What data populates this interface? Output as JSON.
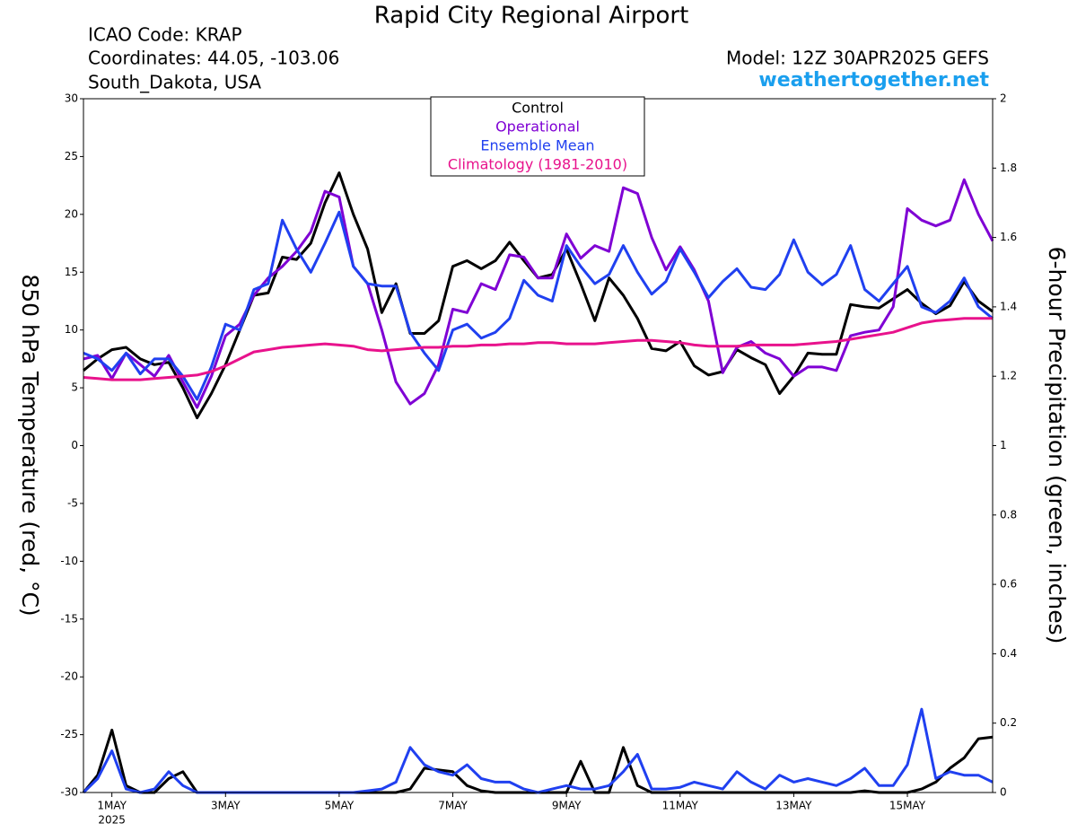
{
  "chart_data": {
    "type": "line",
    "title": "Rapid City Regional Airport",
    "annotations": {
      "icao": "ICAO Code: KRAP",
      "coords": "Coordinates: 44.05, -103.06",
      "place": "South_Dakota, USA",
      "model": "Model: 12Z 30APR2025 GEFS",
      "site": "weathertogether.net",
      "year": "2025"
    },
    "ylabel": "850 hPa Temperature (red, °C)",
    "y2label": "6-hour Precipitation (green, inches)",
    "x": [
      0.5,
      0.75,
      1,
      1.25,
      1.5,
      1.75,
      2,
      2.25,
      2.5,
      2.75,
      3,
      3.25,
      3.5,
      3.75,
      4,
      4.25,
      4.5,
      4.75,
      5,
      5.25,
      5.5,
      5.75,
      6,
      6.25,
      6.5,
      6.75,
      7,
      7.25,
      7.5,
      7.75,
      8,
      8.25,
      8.5,
      8.75,
      9,
      9.25,
      9.5,
      9.75,
      10,
      10.25,
      10.5,
      10.75,
      11,
      11.25,
      11.5,
      11.75,
      12,
      12.25,
      12.5,
      12.75,
      13,
      13.25,
      13.5,
      13.75,
      14,
      14.25,
      14.5,
      14.75,
      15,
      15.25,
      15.5,
      15.75,
      16,
      16.25,
      16.5
    ],
    "xlim": [
      0.5,
      16.5
    ],
    "xticks": [
      {
        "value": 1,
        "label": "1MAY"
      },
      {
        "value": 3,
        "label": "3MAY"
      },
      {
        "value": 5,
        "label": "5MAY"
      },
      {
        "value": 7,
        "label": "7MAY"
      },
      {
        "value": 9,
        "label": "9MAY"
      },
      {
        "value": 11,
        "label": "11MAY"
      },
      {
        "value": 13,
        "label": "13MAY"
      },
      {
        "value": 15,
        "label": "15MAY"
      }
    ],
    "ylim": [
      -30,
      30
    ],
    "yticks": [
      -30,
      -25,
      -20,
      -15,
      -10,
      -5,
      0,
      5,
      10,
      15,
      20,
      25,
      30
    ],
    "y2lim": [
      0,
      2
    ],
    "y2ticks": [
      0,
      0.2,
      0.4,
      0.6,
      0.8,
      1,
      1.2,
      1.4,
      1.6,
      1.8,
      2
    ],
    "series": [
      {
        "name": "Control",
        "color": "#000000",
        "values": [
          6.5,
          7.5,
          8.3,
          8.5,
          7.5,
          7,
          7.2,
          5,
          2.4,
          4.5,
          7,
          10,
          13,
          13.2,
          16.3,
          16.1,
          17.5,
          21,
          23.6,
          20,
          17,
          11.5,
          14,
          9.7,
          9.7,
          10.8,
          15.5,
          16,
          15.3,
          16,
          17.6,
          16,
          14.5,
          14.8,
          17,
          14,
          10.8,
          14.5,
          13,
          11,
          8.4,
          8.2,
          9,
          6.9,
          6.1,
          6.4,
          8.3,
          7.6,
          7,
          4.5,
          6,
          8,
          7.9,
          7.9,
          12.2,
          12,
          11.9,
          12.7,
          13.5,
          12.3,
          11.4,
          12.1,
          14.2,
          12.5,
          11.6
        ]
      },
      {
        "name": "Operational",
        "color": "#7f00d4",
        "values": [
          7.5,
          7.8,
          5.8,
          8,
          7,
          6,
          7.8,
          5.5,
          3.3,
          6,
          9.5,
          10.5,
          13,
          14.5,
          15.5,
          16.8,
          18.5,
          22,
          21.5,
          15.5,
          14,
          10,
          5.5,
          3.6,
          4.5,
          7,
          11.8,
          11.5,
          14,
          13.5,
          16.5,
          16.3,
          14.5,
          14.5,
          18.3,
          16.2,
          17.3,
          16.8,
          22.3,
          21.8,
          18,
          15.2,
          17.2,
          15.2,
          12.5,
          6.3,
          8.5,
          9,
          8,
          7.5,
          6,
          6.8,
          6.8,
          6.5,
          9.5,
          9.8,
          10,
          12,
          20.5,
          19.5,
          19,
          19.5,
          23,
          20,
          17.7
        ]
      },
      {
        "name": "Ensemble Mean",
        "color": "#2040f0",
        "values": [
          8,
          7.5,
          6.5,
          8,
          6.2,
          7.5,
          7.5,
          6,
          4,
          6.8,
          10.5,
          10,
          13.5,
          14,
          19.5,
          17,
          15,
          17.5,
          20.2,
          15.5,
          14,
          13.8,
          13.8,
          9.8,
          8,
          6.5,
          10,
          10.5,
          9.3,
          9.8,
          11,
          14.3,
          13,
          12.5,
          17.3,
          15.5,
          14,
          14.8,
          17.3,
          15,
          13.1,
          14.2,
          17,
          15,
          12.8,
          14.2,
          15.3,
          13.7,
          13.5,
          14.8,
          17.8,
          15,
          13.9,
          14.8,
          17.3,
          13.5,
          12.5,
          14,
          15.5,
          12,
          11.5,
          12.5,
          14.5,
          12,
          11
        ]
      },
      {
        "name": "Climatology (1981-2010)",
        "color": "#e8128c",
        "values": [
          5.9,
          5.8,
          5.7,
          5.7,
          5.7,
          5.8,
          5.9,
          6.0,
          6.1,
          6.4,
          6.9,
          7.5,
          8.1,
          8.3,
          8.5,
          8.6,
          8.7,
          8.8,
          8.7,
          8.6,
          8.3,
          8.2,
          8.3,
          8.4,
          8.5,
          8.5,
          8.6,
          8.6,
          8.7,
          8.7,
          8.8,
          8.8,
          8.9,
          8.9,
          8.8,
          8.8,
          8.8,
          8.9,
          9.0,
          9.1,
          9.1,
          9.0,
          8.9,
          8.7,
          8.6,
          8.6,
          8.6,
          8.7,
          8.7,
          8.7,
          8.7,
          8.8,
          8.9,
          9.0,
          9.2,
          9.4,
          9.6,
          9.8,
          10.2,
          10.6,
          10.8,
          10.9,
          11.0,
          11.0,
          11.0
        ]
      },
      {
        "color": "#000000",
        "axis": "y2",
        "values": [
          0,
          0.05,
          0.18,
          0.02,
          0,
          0,
          0.04,
          0.06,
          0,
          0,
          0,
          0,
          0,
          0,
          0,
          0,
          0,
          0,
          0,
          0,
          0,
          0,
          0,
          0.01,
          0.07,
          0.065,
          0.06,
          0.02,
          0.005,
          0,
          0,
          0,
          0,
          0,
          0,
          0.09,
          0,
          0,
          0.13,
          0.02,
          0,
          0,
          0,
          0,
          0,
          0,
          0,
          0,
          0,
          0,
          0,
          0,
          0,
          0,
          0,
          0.005,
          0,
          0,
          0,
          0.01,
          0.03,
          0.07,
          0.1,
          0.155,
          0.16
        ]
      },
      {
        "color": "#2040f0",
        "axis": "y2",
        "values": [
          0,
          0.04,
          0.12,
          0.01,
          0,
          0.01,
          0.06,
          0.02,
          0,
          0,
          0,
          0,
          0,
          0,
          0,
          0,
          0,
          0,
          0,
          0,
          0.005,
          0.01,
          0.03,
          0.13,
          0.08,
          0.06,
          0.05,
          0.08,
          0.04,
          0.03,
          0.03,
          0.01,
          0,
          0.01,
          0.02,
          0.01,
          0.01,
          0.02,
          0.06,
          0.11,
          0.01,
          0.01,
          0.015,
          0.03,
          0.02,
          0.01,
          0.06,
          0.03,
          0.01,
          0.05,
          0.03,
          0.04,
          0.03,
          0.02,
          0.04,
          0.07,
          0.02,
          0.02,
          0.08,
          0.24,
          0.04,
          0.06,
          0.05,
          0.05,
          0.03
        ]
      }
    ]
  }
}
